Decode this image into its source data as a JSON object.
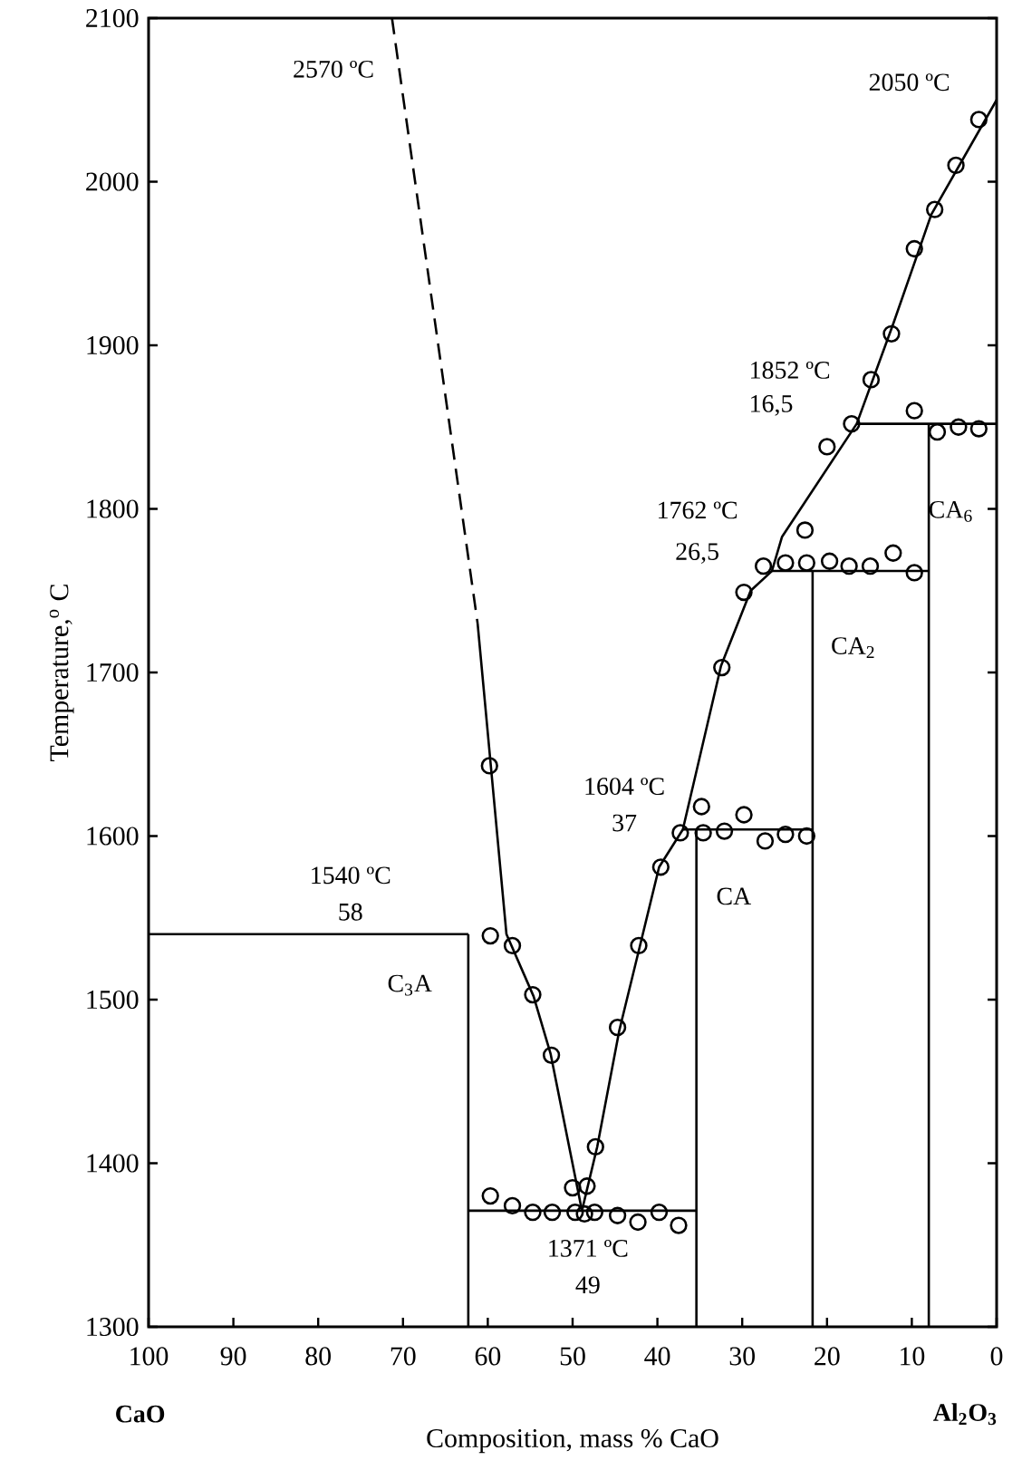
{
  "chart_data": {
    "type": "line",
    "xlabel": "Composition, mass % CaO",
    "ylabel": "Temperature,$^{o}$ C",
    "xlim": [
      100,
      0
    ],
    "ylim": [
      1300,
      2100
    ],
    "xticks": [
      100,
      90,
      80,
      70,
      60,
      50,
      40,
      30,
      20,
      10,
      0
    ],
    "yticks": [
      1300,
      1400,
      1500,
      1600,
      1700,
      1800,
      1900,
      2000,
      2100
    ],
    "series": [
      {
        "color": "#000000",
        "line_style": "dashed",
        "x": [
          71.3,
          61.2
        ],
        "values": [
          2100,
          1730
        ]
      },
      {
        "color": "#000000",
        "x": [
          61.2,
          57.8,
          54.6,
          52.6,
          48.9
        ],
        "values": [
          1730,
          1540,
          1502,
          1467,
          1371
        ]
      },
      {
        "color": "#000000",
        "x": [
          48.9,
          47.1,
          44.5,
          42.1,
          39.8,
          37,
          32.5,
          29,
          26.5,
          25.3,
          16.5,
          12.2,
          7.7,
          0
        ],
        "values": [
          1371,
          1410,
          1481,
          1532,
          1581,
          1604,
          1704,
          1750,
          1762,
          1783,
          1852,
          1913,
          1980,
          2050
        ]
      },
      {
        "color": "#000000",
        "x": [
          100,
          62.3
        ],
        "values": [
          1540,
          1540
        ]
      },
      {
        "color": "#000000",
        "x": [
          62.3,
          35.4
        ],
        "values": [
          1371,
          1371
        ]
      },
      {
        "color": "#000000",
        "x": [
          37,
          21.7
        ],
        "values": [
          1604,
          1604
        ]
      },
      {
        "color": "#000000",
        "x": [
          26.5,
          8
        ],
        "values": [
          1762,
          1762
        ]
      },
      {
        "color": "#000000",
        "x": [
          16.5,
          0
        ],
        "values": [
          1852,
          1852
        ]
      },
      {
        "color": "#000000",
        "x": [
          62.3,
          62.3
        ],
        "values": [
          1300,
          1540
        ]
      },
      {
        "color": "#000000",
        "x": [
          35.4,
          35.4
        ],
        "values": [
          1300,
          1604
        ]
      },
      {
        "color": "#000000",
        "x": [
          21.7,
          21.7
        ],
        "values": [
          1300,
          1762
        ]
      },
      {
        "color": "#000000",
        "x": [
          8,
          8
        ],
        "values": [
          1300,
          1852
        ]
      },
      {
        "type": "scatter",
        "marker": "circle",
        "color": "#000000",
        "x": [
          2.1,
          4.8,
          7.3,
          9.7,
          12.4,
          14.8,
          17.1,
          20.0,
          9.7,
          7.0,
          4.5,
          2.1,
          22.6,
          24.9,
          27.5,
          29.8,
          22.4,
          19.7,
          17.4,
          14.9,
          12.2,
          9.7,
          32.4,
          59.8,
          34.8,
          29.8,
          37.3,
          34.6,
          32.1,
          27.3,
          24.9,
          22.4,
          39.6,
          42.2,
          59.7,
          57.1,
          54.7,
          44.7,
          52.5,
          47.3,
          50.0,
          48.3,
          59.7,
          57.1,
          54.7,
          52.4,
          49.7,
          48.6,
          47.4,
          44.7,
          42.3,
          39.8,
          37.5
        ],
        "values": [
          2038,
          2010,
          1983,
          1959,
          1907,
          1879,
          1852,
          1838,
          1860,
          1847,
          1850,
          1849,
          1787,
          1767,
          1765,
          1749,
          1767,
          1768,
          1765,
          1765,
          1773,
          1761,
          1703,
          1643,
          1618,
          1613,
          1602,
          1602,
          1603,
          1597,
          1601,
          1600,
          1581,
          1533,
          1539,
          1533,
          1503,
          1483,
          1466,
          1410,
          1385,
          1386,
          1380,
          1374,
          1370,
          1370,
          1370,
          1369,
          1370,
          1368,
          1364,
          1370,
          1362
        ]
      }
    ],
    "annotations": [
      "2570 ºC",
      "2050 ºC",
      "1852 ºC",
      "16,5",
      "1762 ºC",
      "26,5",
      "1604 ºC",
      "37",
      "1540 ºC",
      "58",
      "1371 ºC",
      "49",
      "C$_{3}$A",
      "CA",
      "CA$_{2}$",
      "CA$_{6}$",
      "CaO",
      "Al$_{2}$O$_{3}$"
    ]
  }
}
